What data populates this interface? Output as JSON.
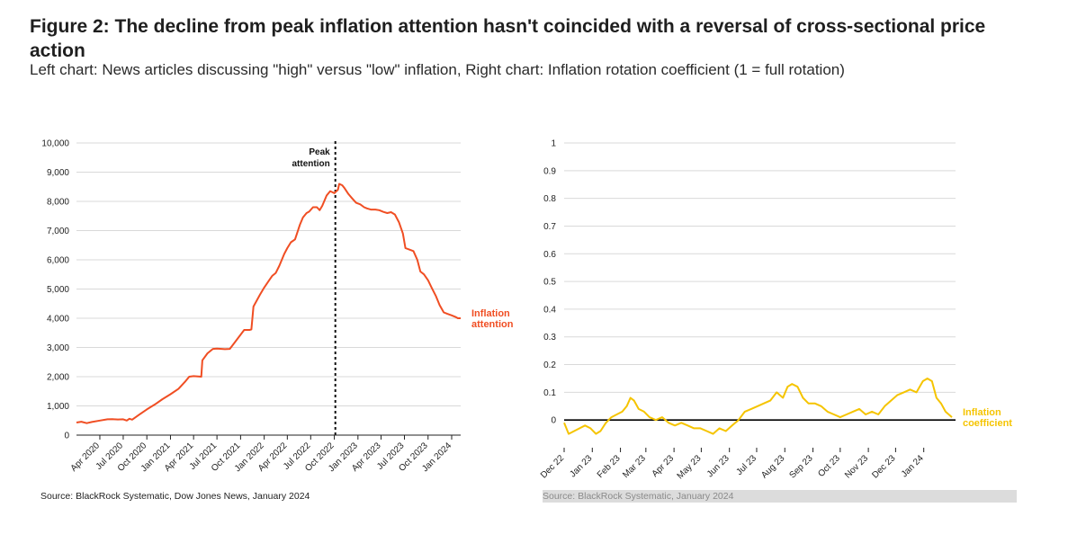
{
  "title": "Figure 2: The decline from peak inflation attention hasn't coincided with a reversal of cross-sectional price action",
  "subtitle": "Left chart: News articles discussing \"high\" versus \"low\" inflation, Right chart: Inflation rotation coefficient (1 = full rotation)",
  "colors": {
    "attention": "#f04e23",
    "coefficient": "#f5c400",
    "grid": "#d9d9d9",
    "axis": "#222222",
    "zero_line": "#000000"
  },
  "chart_data": [
    {
      "type": "line",
      "title": "",
      "xlabel": "",
      "ylabel": "",
      "ylim": [
        0,
        10000
      ],
      "xlim": [
        "2020-01-01",
        "2024-02-05"
      ],
      "grid": true,
      "yticks": [
        0,
        1000,
        2000,
        3000,
        4000,
        5000,
        6000,
        7000,
        8000,
        9000,
        10000
      ],
      "ytick_labels": [
        "0",
        "1,000",
        "2,000",
        "3,000",
        "4,000",
        "5,000",
        "6,000",
        "7,000",
        "8,000",
        "9,000",
        "10,000"
      ],
      "xticks": [
        "2020-04-01",
        "2020-07-01",
        "2020-10-01",
        "2021-01-01",
        "2021-04-01",
        "2021-07-01",
        "2021-10-01",
        "2022-01-01",
        "2022-04-01",
        "2022-07-01",
        "2022-10-01",
        "2023-01-01",
        "2023-04-01",
        "2023-07-01",
        "2023-10-01",
        "2024-01-01"
      ],
      "xtick_labels": [
        "Apr 2020",
        "Jul 2020",
        "Oct 2020",
        "Jan 2021",
        "Apr 2021",
        "Jul 2021",
        "Oct 2021",
        "Jan 2022",
        "Apr 2022",
        "Jul 2022",
        "Oct 2022",
        "Jan 2023",
        "Apr 2023",
        "Jul 2023",
        "Oct 2023",
        "Jan 2024"
      ],
      "series": [
        {
          "name": "Inflation attention",
          "label": [
            "Inflation",
            "attention"
          ],
          "x": [
            "2020-01-01",
            "2020-01-20",
            "2020-02-10",
            "2020-03-01",
            "2020-04-01",
            "2020-05-01",
            "2020-05-20",
            "2020-06-10",
            "2020-07-01",
            "2020-07-15",
            "2020-07-25",
            "2020-08-05",
            "2020-09-01",
            "2020-10-01",
            "2020-11-01",
            "2020-12-01",
            "2021-01-01",
            "2021-02-01",
            "2021-03-01",
            "2021-03-15",
            "2021-04-01",
            "2021-05-01",
            "2021-05-05",
            "2021-05-25",
            "2021-06-15",
            "2021-07-01",
            "2021-08-01",
            "2021-08-20",
            "2021-09-15",
            "2021-10-15",
            "2021-11-05",
            "2021-11-12",
            "2021-11-20",
            "2021-12-15",
            "2022-01-01",
            "2022-01-20",
            "2022-02-01",
            "2022-02-15",
            "2022-03-01",
            "2022-03-20",
            "2022-04-01",
            "2022-04-15",
            "2022-05-01",
            "2022-05-20",
            "2022-06-01",
            "2022-06-15",
            "2022-06-25",
            "2022-07-10",
            "2022-07-25",
            "2022-08-05",
            "2022-08-15",
            "2022-09-01",
            "2022-09-15",
            "2022-10-01",
            "2022-10-15",
            "2022-10-20",
            "2022-11-01",
            "2022-11-10",
            "2022-11-25",
            "2022-12-10",
            "2022-12-25",
            "2023-01-10",
            "2023-01-25",
            "2023-02-05",
            "2023-02-20",
            "2023-03-10",
            "2023-03-25",
            "2023-04-10",
            "2023-04-25",
            "2023-05-10",
            "2023-05-25",
            "2023-06-10",
            "2023-06-25",
            "2023-07-05",
            "2023-07-20",
            "2023-08-05",
            "2023-08-20",
            "2023-09-01",
            "2023-09-15",
            "2023-10-01",
            "2023-10-15",
            "2023-11-01",
            "2023-11-15",
            "2023-12-01",
            "2023-12-15",
            "2024-01-01",
            "2024-01-15",
            "2024-01-25",
            "2024-02-05"
          ],
          "values": [
            430,
            460,
            410,
            450,
            500,
            540,
            545,
            535,
            540,
            500,
            560,
            530,
            700,
            880,
            1050,
            1230,
            1400,
            1580,
            1850,
            2000,
            2020,
            2000,
            2560,
            2800,
            2950,
            2960,
            2940,
            2950,
            3250,
            3600,
            3600,
            3620,
            4400,
            4800,
            5050,
            5300,
            5450,
            5550,
            5800,
            6200,
            6400,
            6600,
            6700,
            7200,
            7450,
            7600,
            7650,
            7800,
            7800,
            7700,
            7850,
            8200,
            8350,
            8280,
            8400,
            8600,
            8550,
            8450,
            8250,
            8100,
            7950,
            7900,
            7800,
            7760,
            7720,
            7720,
            7700,
            7640,
            7600,
            7630,
            7550,
            7280,
            6900,
            6400,
            6350,
            6300,
            6000,
            5600,
            5500,
            5300,
            5050,
            4750,
            4450,
            4200,
            4150,
            4100,
            4050,
            4000,
            4000
          ]
        }
      ],
      "annotations": [
        {
          "x": "2022-10-05",
          "text": [
            "Peak",
            "attention"
          ],
          "style": "dashed-vertical"
        }
      ]
    },
    {
      "type": "line",
      "title": "",
      "xlabel": "",
      "ylabel": "",
      "ylim": [
        -0.1,
        1
      ],
      "xlim": [
        "2022-12-01",
        "2024-02-05"
      ],
      "grid": true,
      "yticks": [
        0,
        0.1,
        0.2,
        0.3,
        0.4,
        0.5,
        0.6,
        0.7,
        0.8,
        0.9,
        1
      ],
      "ytick_labels": [
        "0",
        "0.1",
        "0.2",
        "0.3",
        "0.4",
        "0.5",
        "0.6",
        "0.7",
        "0.8",
        "0.9",
        "1"
      ],
      "xticks": [
        "2022-12-01",
        "2023-01-01",
        "2023-02-01",
        "2023-03-01",
        "2023-04-01",
        "2023-05-01",
        "2023-06-01",
        "2023-07-01",
        "2023-08-01",
        "2023-09-01",
        "2023-10-01",
        "2023-11-01",
        "2023-12-01",
        "2024-01-01"
      ],
      "xtick_labels": [
        "Dec 22",
        "Jan 23",
        "Feb 23",
        "Mar 23",
        "Apr 23",
        "May 23",
        "Jun 23",
        "Jul 23",
        "Aug 23",
        "Sep 23",
        "Oct 23",
        "Nov 23",
        "Dec 23",
        "Jan 24"
      ],
      "series": [
        {
          "name": "Inflation coefficient",
          "label": [
            "Inflation",
            "coefficient"
          ],
          "x": [
            "2022-12-01",
            "2022-12-06",
            "2022-12-12",
            "2022-12-18",
            "2022-12-24",
            "2022-12-30",
            "2023-01-05",
            "2023-01-10",
            "2023-01-16",
            "2023-01-22",
            "2023-01-28",
            "2023-02-03",
            "2023-02-08",
            "2023-02-12",
            "2023-02-16",
            "2023-02-21",
            "2023-02-27",
            "2023-03-05",
            "2023-03-12",
            "2023-03-19",
            "2023-03-26",
            "2023-04-02",
            "2023-04-09",
            "2023-04-16",
            "2023-04-23",
            "2023-04-30",
            "2023-05-07",
            "2023-05-14",
            "2023-05-21",
            "2023-05-28",
            "2023-06-04",
            "2023-06-11",
            "2023-06-18",
            "2023-06-25",
            "2023-07-02",
            "2023-07-09",
            "2023-07-16",
            "2023-07-23",
            "2023-07-30",
            "2023-08-04",
            "2023-08-09",
            "2023-08-15",
            "2023-08-21",
            "2023-08-27",
            "2023-09-03",
            "2023-09-10",
            "2023-09-17",
            "2023-09-24",
            "2023-10-01",
            "2023-10-08",
            "2023-10-15",
            "2023-10-22",
            "2023-10-29",
            "2023-11-05",
            "2023-11-12",
            "2023-11-19",
            "2023-11-26",
            "2023-12-03",
            "2023-12-10",
            "2023-12-17",
            "2023-12-24",
            "2023-12-31",
            "2024-01-05",
            "2024-01-10",
            "2024-01-15",
            "2024-01-20",
            "2024-01-25",
            "2024-02-01"
          ],
          "values": [
            -0.01,
            -0.05,
            -0.04,
            -0.03,
            -0.02,
            -0.03,
            -0.05,
            -0.04,
            -0.01,
            0.01,
            0.02,
            0.03,
            0.05,
            0.08,
            0.07,
            0.04,
            0.03,
            0.01,
            0.0,
            0.01,
            -0.01,
            -0.02,
            -0.01,
            -0.02,
            -0.03,
            -0.03,
            -0.04,
            -0.05,
            -0.03,
            -0.04,
            -0.02,
            0.0,
            0.03,
            0.04,
            0.05,
            0.06,
            0.07,
            0.1,
            0.08,
            0.12,
            0.13,
            0.12,
            0.08,
            0.06,
            0.06,
            0.05,
            0.03,
            0.02,
            0.01,
            0.02,
            0.03,
            0.04,
            0.02,
            0.03,
            0.02,
            0.05,
            0.07,
            0.09,
            0.1,
            0.11,
            0.1,
            0.14,
            0.15,
            0.14,
            0.08,
            0.06,
            0.03,
            0.01
          ]
        }
      ],
      "reference_lines": [
        {
          "y": 0,
          "style": "solid-black"
        }
      ]
    }
  ],
  "sources": {
    "left": "Source: BlackRock Systematic, Dow Jones News, January 2024",
    "right": "Source: BlackRock Systematic, January 2024"
  }
}
